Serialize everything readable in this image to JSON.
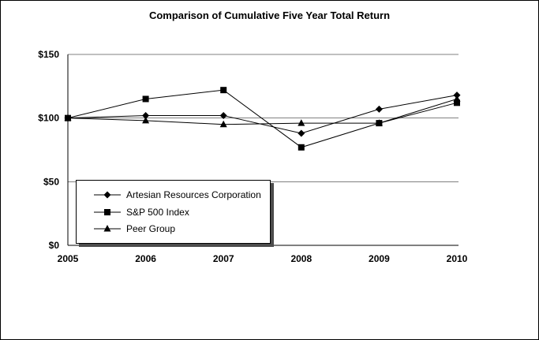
{
  "chart_data": {
    "type": "line",
    "title": "Comparison of Cumulative Five Year Total Return",
    "categories": [
      "2005",
      "2006",
      "2007",
      "2008",
      "2009",
      "2010"
    ],
    "series": [
      {
        "name": "Artesian Resources Corporation",
        "marker": "diamond",
        "values": [
          100,
          102,
          102,
          88,
          107,
          118
        ]
      },
      {
        "name": "S&P 500 Index",
        "marker": "square",
        "values": [
          100,
          115,
          122,
          77,
          96,
          112
        ]
      },
      {
        "name": "Peer Group",
        "marker": "triangle",
        "values": [
          100,
          98,
          95,
          96,
          96,
          115
        ]
      }
    ],
    "xlabel": "",
    "ylabel": "",
    "ylim": [
      0,
      150
    ],
    "yticks": [
      0,
      50,
      100,
      150
    ],
    "ytick_labels": [
      "$0",
      "$50",
      "$100",
      "$150"
    ],
    "grid": true,
    "legend_position": "inside-bottom-left",
    "line_color": "#000000",
    "grid_color": "#808080"
  }
}
